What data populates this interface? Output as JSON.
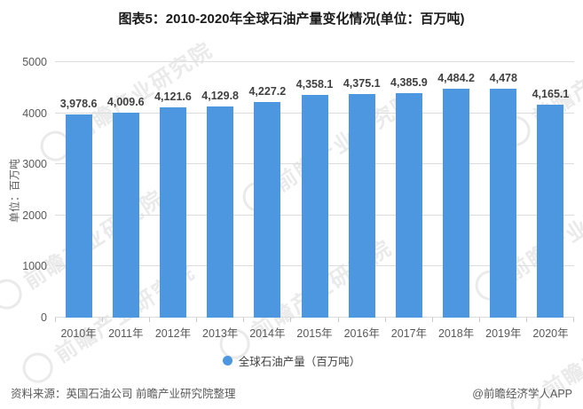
{
  "watermark": {
    "text": "前瞻产业研究院"
  },
  "footer": {
    "source": "资料来源：英国石油公司 前瞻产业研究院整理",
    "credit": "@前瞻经济学人APP"
  },
  "chart_data": {
    "type": "bar",
    "title": "图表5：2010-2020年全球石油产量变化情况(单位：百万吨)",
    "ylabel": "单位：百万吨",
    "xlabel": "",
    "categories": [
      "2010年",
      "2011年",
      "2012年",
      "2013年",
      "2014年",
      "2015年",
      "2016年",
      "2017年",
      "2018年",
      "2019年",
      "2020年"
    ],
    "values": [
      3978.6,
      4009.6,
      4121.6,
      4129.8,
      4227.2,
      4358.1,
      4375.1,
      4385.9,
      4484.2,
      4478,
      4165.1
    ],
    "value_labels": [
      "3,978.6",
      "4,009.6",
      "4,121.6",
      "4,129.8",
      "4,227.2",
      "4,358.1",
      "4,375.1",
      "4,385.9",
      "4,484.2",
      "4,478",
      "4,165.1"
    ],
    "ylim": [
      0,
      5000
    ],
    "yticks": [
      0,
      1000,
      2000,
      3000,
      4000,
      5000
    ],
    "grid": true,
    "legend": [
      "全球石油产量（百万吨）"
    ],
    "legend_position": "bottom",
    "bar_color": "#4D96E0",
    "grid_color": "#dcdcdc"
  }
}
